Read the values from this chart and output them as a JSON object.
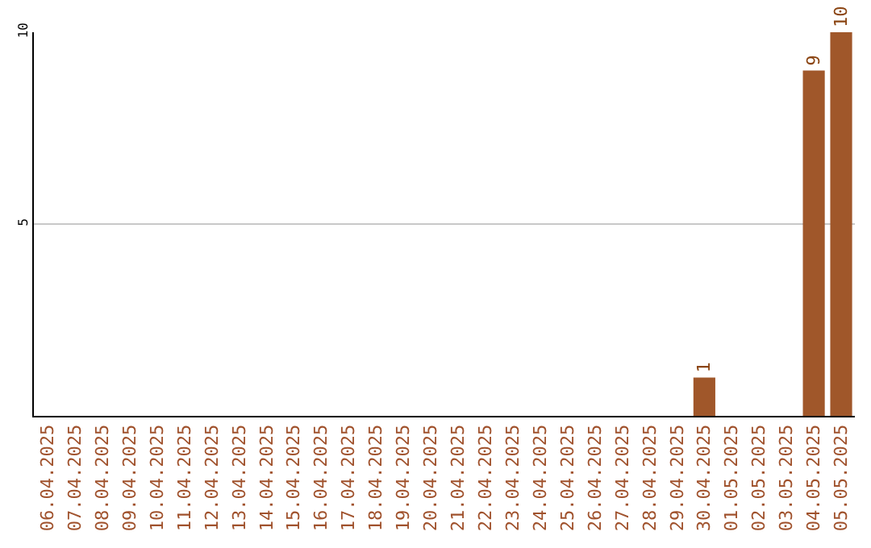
{
  "chart_data": {
    "type": "bar",
    "categories": [
      "06.04.2025",
      "07.04.2025",
      "08.04.2025",
      "09.04.2025",
      "10.04.2025",
      "11.04.2025",
      "12.04.2025",
      "13.04.2025",
      "14.04.2025",
      "15.04.2025",
      "16.04.2025",
      "17.04.2025",
      "18.04.2025",
      "19.04.2025",
      "20.04.2025",
      "21.04.2025",
      "22.04.2025",
      "23.04.2025",
      "24.04.2025",
      "25.04.2025",
      "26.04.2025",
      "27.04.2025",
      "28.04.2025",
      "29.04.2025",
      "30.04.2025",
      "01.05.2025",
      "02.05.2025",
      "03.05.2025",
      "04.05.2025",
      "05.05.2025"
    ],
    "values": [
      0,
      0,
      0,
      0,
      0,
      0,
      0,
      0,
      0,
      0,
      0,
      0,
      0,
      0,
      0,
      0,
      0,
      0,
      0,
      0,
      0,
      0,
      0,
      0,
      1,
      0,
      0,
      0,
      9,
      10
    ],
    "value_labels": [
      null,
      null,
      null,
      null,
      null,
      null,
      null,
      null,
      null,
      null,
      null,
      null,
      null,
      null,
      null,
      null,
      null,
      null,
      null,
      null,
      null,
      null,
      null,
      null,
      "1",
      null,
      null,
      null,
      "9",
      "10"
    ],
    "color": "#a0572a",
    "ylim": [
      0,
      10
    ],
    "yticks": [
      5,
      10
    ],
    "grid": "y",
    "legend": false
  }
}
